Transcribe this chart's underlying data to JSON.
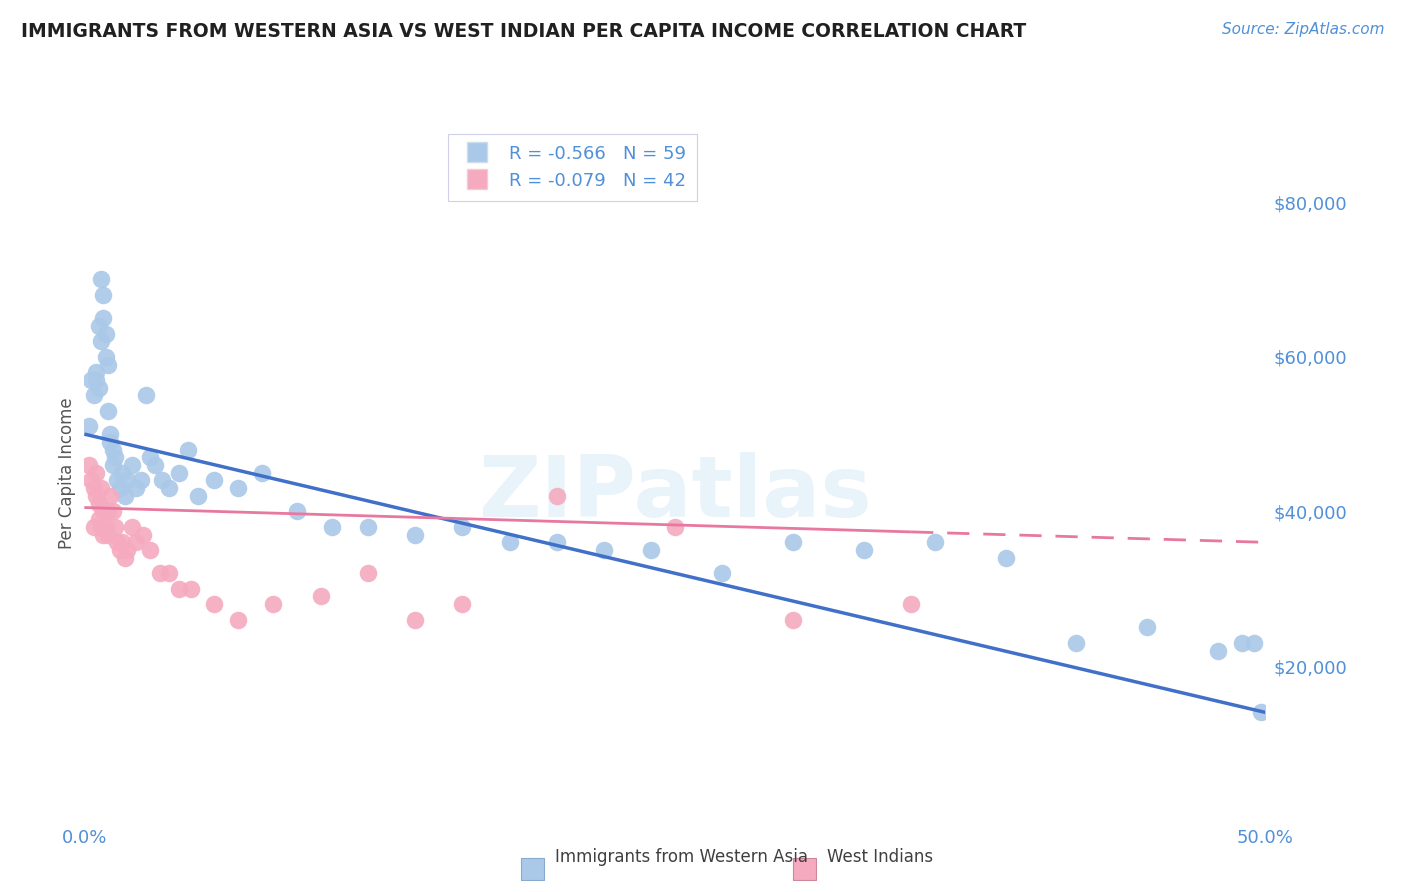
{
  "title": "IMMIGRANTS FROM WESTERN ASIA VS WEST INDIAN PER CAPITA INCOME CORRELATION CHART",
  "source": "Source: ZipAtlas.com",
  "ylabel": "Per Capita Income",
  "watermark": "ZIPatlas",
  "xlim": [
    0.0,
    0.5
  ],
  "ylim": [
    0,
    90000
  ],
  "yticks": [
    0,
    20000,
    40000,
    60000,
    80000
  ],
  "ytick_labels": [
    "",
    "$20,000",
    "$40,000",
    "$60,000",
    "$80,000"
  ],
  "xticks": [
    0.0,
    0.1,
    0.2,
    0.3,
    0.4,
    0.5
  ],
  "xtick_labels": [
    "0.0%",
    "",
    "",
    "",
    "",
    "50.0%"
  ],
  "blue_R": -0.566,
  "blue_N": 59,
  "pink_R": -0.079,
  "pink_N": 42,
  "blue_color": "#aac8e8",
  "pink_color": "#f5aabf",
  "blue_line_color": "#4070c8",
  "pink_line_color": "#e878a0",
  "grid_color": "#ccccdd",
  "title_color": "#202020",
  "axis_color": "#5090d8",
  "blue_scatter_x": [
    0.002,
    0.003,
    0.004,
    0.005,
    0.005,
    0.006,
    0.006,
    0.007,
    0.007,
    0.008,
    0.008,
    0.009,
    0.009,
    0.01,
    0.01,
    0.011,
    0.011,
    0.012,
    0.012,
    0.013,
    0.014,
    0.015,
    0.016,
    0.017,
    0.018,
    0.02,
    0.022,
    0.024,
    0.026,
    0.028,
    0.03,
    0.033,
    0.036,
    0.04,
    0.044,
    0.048,
    0.055,
    0.065,
    0.075,
    0.09,
    0.105,
    0.12,
    0.14,
    0.16,
    0.18,
    0.2,
    0.22,
    0.24,
    0.27,
    0.3,
    0.33,
    0.36,
    0.39,
    0.42,
    0.45,
    0.48,
    0.49,
    0.495,
    0.498
  ],
  "blue_scatter_y": [
    51000,
    57000,
    55000,
    58000,
    57000,
    56000,
    64000,
    62000,
    70000,
    68000,
    65000,
    63000,
    60000,
    53000,
    59000,
    50000,
    49000,
    48000,
    46000,
    47000,
    44000,
    43000,
    45000,
    42000,
    44000,
    46000,
    43000,
    44000,
    55000,
    47000,
    46000,
    44000,
    43000,
    45000,
    48000,
    42000,
    44000,
    43000,
    45000,
    40000,
    38000,
    38000,
    37000,
    38000,
    36000,
    36000,
    35000,
    35000,
    32000,
    36000,
    35000,
    36000,
    34000,
    23000,
    25000,
    22000,
    23000,
    23000,
    14000
  ],
  "pink_scatter_x": [
    0.002,
    0.003,
    0.004,
    0.004,
    0.005,
    0.005,
    0.006,
    0.006,
    0.007,
    0.007,
    0.008,
    0.008,
    0.009,
    0.01,
    0.01,
    0.011,
    0.012,
    0.013,
    0.014,
    0.015,
    0.016,
    0.017,
    0.018,
    0.02,
    0.022,
    0.025,
    0.028,
    0.032,
    0.036,
    0.04,
    0.045,
    0.055,
    0.065,
    0.08,
    0.1,
    0.12,
    0.14,
    0.16,
    0.2,
    0.25,
    0.3,
    0.35
  ],
  "pink_scatter_y": [
    46000,
    44000,
    43000,
    38000,
    45000,
    42000,
    41000,
    39000,
    43000,
    38000,
    37000,
    40000,
    38000,
    37000,
    40000,
    42000,
    40000,
    38000,
    36000,
    35000,
    36000,
    34000,
    35000,
    38000,
    36000,
    37000,
    35000,
    32000,
    32000,
    30000,
    30000,
    28000,
    26000,
    28000,
    29000,
    32000,
    26000,
    28000,
    42000,
    38000,
    26000,
    28000
  ],
  "blue_trendline_x0": 0.0,
  "blue_trendline_y0": 50000,
  "blue_trendline_x1": 0.5,
  "blue_trendline_y1": 14000,
  "pink_trendline_x0": 0.0,
  "pink_trendline_y0": 40500,
  "pink_trendline_x1": 0.5,
  "pink_trendline_y1": 36000
}
